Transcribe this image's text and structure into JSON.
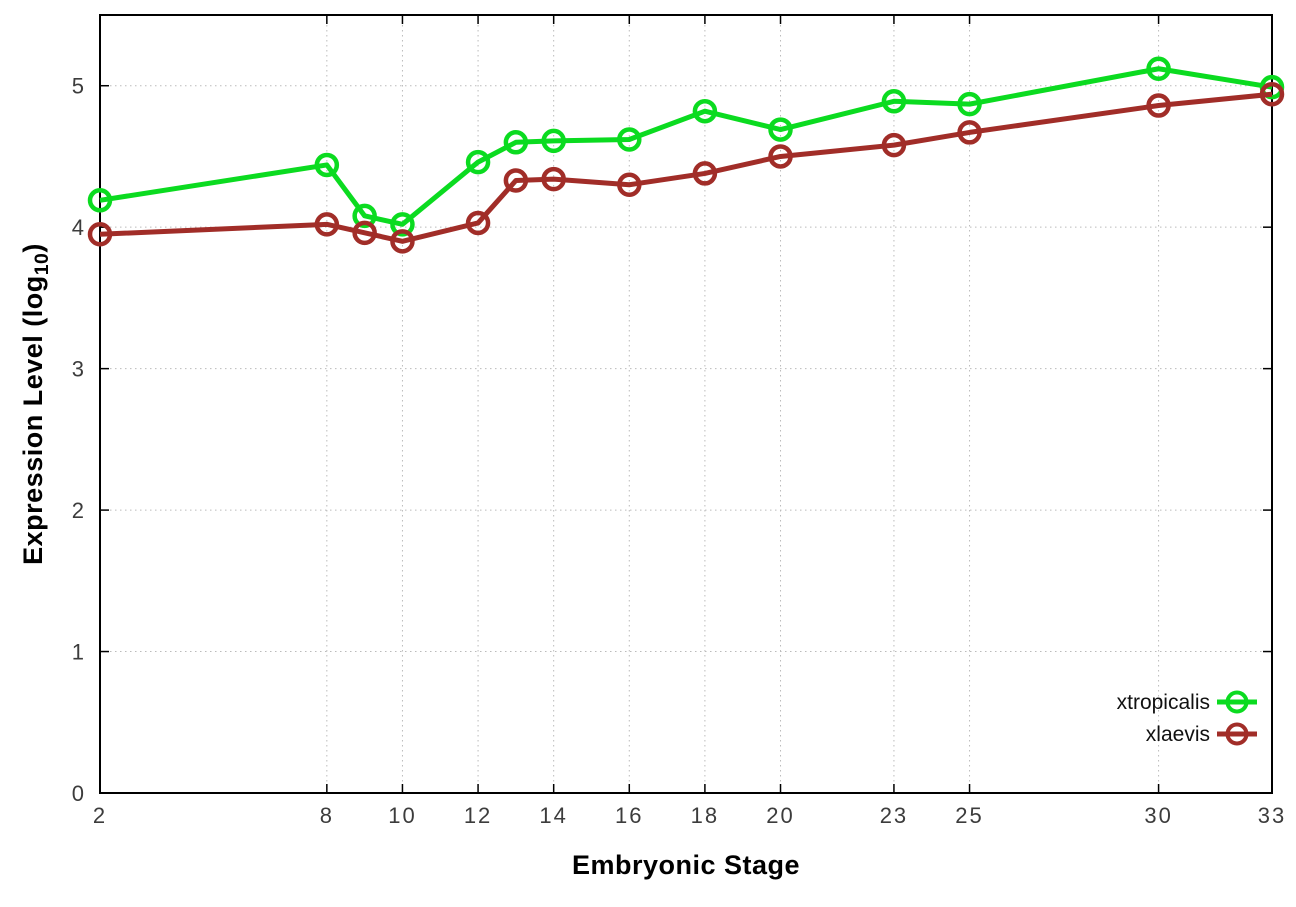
{
  "chart_data": {
    "type": "line",
    "title": "",
    "xlabel": "Embryonic Stage",
    "ylabel": "Expression Level (log10)",
    "ylabel_parts": {
      "pre": "Expression Level (log",
      "sub": "10",
      "post": ")"
    },
    "x": [
      2,
      8,
      9,
      10,
      12,
      13,
      14,
      16,
      18,
      20,
      23,
      25,
      30,
      33
    ],
    "x_tick_labels": [
      2,
      8,
      10,
      12,
      14,
      16,
      18,
      20,
      23,
      25,
      30,
      33
    ],
    "y_ticks": [
      0,
      1,
      2,
      3,
      4,
      5
    ],
    "xlim": [
      2,
      33
    ],
    "ylim": [
      0,
      5.5
    ],
    "grid": true,
    "legend_position": "bottom-right",
    "series": [
      {
        "name": "xtropicalis",
        "color": "#0bdb20",
        "values": [
          4.19,
          4.44,
          4.08,
          4.02,
          4.46,
          4.6,
          4.61,
          4.62,
          4.82,
          4.69,
          4.89,
          4.87,
          5.12,
          4.99
        ]
      },
      {
        "name": "xlaevis",
        "color": "#a12d28",
        "values": [
          3.95,
          4.02,
          3.96,
          3.9,
          4.03,
          4.33,
          4.34,
          4.3,
          4.38,
          4.5,
          4.58,
          4.67,
          4.86,
          4.94
        ]
      }
    ],
    "style": {
      "grid_color": "#bbbbbb",
      "border_color": "#000000",
      "tick_label_color": "#3c3c3c",
      "line_width": 5,
      "marker_radius": 10,
      "marker_stroke": 4.5
    }
  }
}
